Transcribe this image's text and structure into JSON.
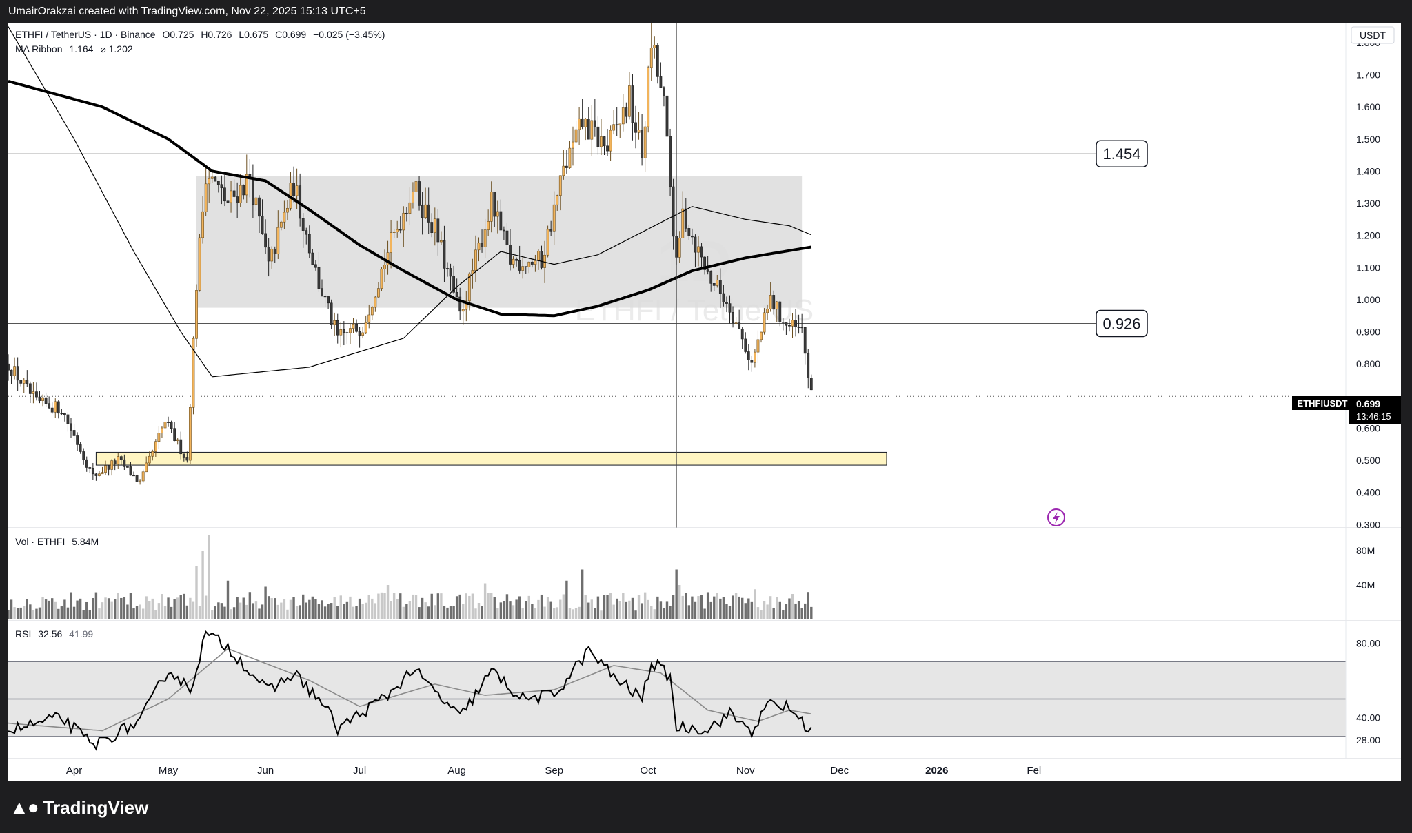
{
  "header": {
    "attribution": "UmairOrakzai created with TradingView.com, Nov 22, 2025 15:13 UTC+5"
  },
  "footer": {
    "brand": "TradingView"
  },
  "legend": {
    "symbol": "ETHFI / TetherUS · 1D · Binance",
    "open": "O0.725",
    "high": "H0.726",
    "low": "L0.675",
    "close": "C0.699",
    "change": "−0.025 (−3.45%)",
    "ribbon_label": "MA Ribbon",
    "ribbon_value1": "1.164",
    "ribbon_value2": "⌀ 1.202",
    "vol_label": "Vol · ETHFI",
    "vol_value": "5.84M",
    "rsi_label": "RSI",
    "rsi_value": "32.56",
    "rsi_ma": "41.99"
  },
  "watermark": {
    "ticker": "ETHFI / TetherUS",
    "interval": "1D"
  },
  "price_axis": {
    "currency": "USDT",
    "ticks": [
      "1.800",
      "1.700",
      "1.600",
      "1.500",
      "1.400",
      "1.300",
      "1.200",
      "1.100",
      "1.000",
      "0.900",
      "0.800",
      "0.600",
      "0.500",
      "0.400",
      "0.300"
    ],
    "current_symbol": "ETHFIUSDT",
    "current_price": "0.699",
    "countdown": "13:46:15"
  },
  "vol_axis": {
    "ticks": [
      "80M",
      "40M"
    ]
  },
  "rsi_axis": {
    "ticks": [
      "80.00",
      "40.00",
      "28.00"
    ]
  },
  "time_axis": {
    "ticks": [
      "Apr",
      "May",
      "Jun",
      "Jul",
      "Aug",
      "Sep",
      "Oct",
      "Nov",
      "Dec",
      "2026",
      "Fel"
    ]
  },
  "annotations": {
    "level_high": "1.454",
    "level_low": "0.926"
  },
  "colors": {
    "bull": "#f2b45c",
    "bear": "#3a3a3a",
    "zone_grey": "#dcdcdc",
    "zone_yellow": "#fff5c2",
    "ma_line": "#000000",
    "rsi_line": "#000000",
    "rsi_ma_line": "#8a8a8a"
  },
  "chart_data": {
    "type": "candlestick",
    "symbol": "ETHFI / TetherUS",
    "interval": "1D",
    "exchange": "Binance",
    "time_range": [
      "2025-03-11",
      "2025-11-22"
    ],
    "price_range": [
      0.3,
      1.85
    ],
    "anchors": [
      {
        "date": "2025-03-11",
        "close": 0.8
      },
      {
        "date": "2025-03-20",
        "close": 0.68
      },
      {
        "date": "2025-03-28",
        "close": 0.66
      },
      {
        "date": "2025-04-07",
        "close": 0.45
      },
      {
        "date": "2025-04-15",
        "close": 0.5
      },
      {
        "date": "2025-04-22",
        "close": 0.43
      },
      {
        "date": "2025-04-30",
        "close": 0.62
      },
      {
        "date": "2025-05-07",
        "close": 0.5
      },
      {
        "date": "2025-05-10",
        "close": 1.05
      },
      {
        "date": "2025-05-13",
        "close": 1.4
      },
      {
        "date": "2025-05-20",
        "close": 1.3
      },
      {
        "date": "2025-05-27",
        "close": 1.38
      },
      {
        "date": "2025-06-02",
        "close": 1.1
      },
      {
        "date": "2025-06-10",
        "close": 1.36
      },
      {
        "date": "2025-06-18",
        "close": 1.05
      },
      {
        "date": "2025-06-24",
        "close": 0.88
      },
      {
        "date": "2025-07-02",
        "close": 0.92
      },
      {
        "date": "2025-07-10",
        "close": 1.15
      },
      {
        "date": "2025-07-18",
        "close": 1.35
      },
      {
        "date": "2025-07-25",
        "close": 1.22
      },
      {
        "date": "2025-08-02",
        "close": 0.95
      },
      {
        "date": "2025-08-12",
        "close": 1.3
      },
      {
        "date": "2025-08-18",
        "close": 1.12
      },
      {
        "date": "2025-08-28",
        "close": 1.12
      },
      {
        "date": "2025-09-04",
        "close": 1.4
      },
      {
        "date": "2025-09-10",
        "close": 1.55
      },
      {
        "date": "2025-09-18",
        "close": 1.47
      },
      {
        "date": "2025-09-25",
        "close": 1.62
      },
      {
        "date": "2025-09-29",
        "close": 1.45
      },
      {
        "date": "2025-10-02",
        "close": 1.8
      },
      {
        "date": "2025-10-06",
        "close": 1.6
      },
      {
        "date": "2025-10-10",
        "close": 1.1
      },
      {
        "date": "2025-10-12",
        "close": 1.27
      },
      {
        "date": "2025-10-20",
        "close": 1.08
      },
      {
        "date": "2025-10-27",
        "close": 0.98
      },
      {
        "date": "2025-11-03",
        "close": 0.8
      },
      {
        "date": "2025-11-09",
        "close": 1.0
      },
      {
        "date": "2025-11-14",
        "close": 0.92
      },
      {
        "date": "2025-11-19",
        "close": 0.9
      },
      {
        "date": "2025-11-22",
        "close": 0.699
      }
    ],
    "ma_ribbon": {
      "slow": [
        {
          "date": "2025-03-11",
          "value": 1.68
        },
        {
          "date": "2025-04-10",
          "value": 1.6
        },
        {
          "date": "2025-05-01",
          "value": 1.5
        },
        {
          "date": "2025-05-15",
          "value": 1.4
        },
        {
          "date": "2025-06-01",
          "value": 1.37
        },
        {
          "date": "2025-06-15",
          "value": 1.28
        },
        {
          "date": "2025-07-01",
          "value": 1.17
        },
        {
          "date": "2025-07-15",
          "value": 1.09
        },
        {
          "date": "2025-08-01",
          "value": 1.0
        },
        {
          "date": "2025-08-15",
          "value": 0.955
        },
        {
          "date": "2025-09-01",
          "value": 0.95
        },
        {
          "date": "2025-09-15",
          "value": 0.98
        },
        {
          "date": "2025-10-01",
          "value": 1.03
        },
        {
          "date": "2025-10-15",
          "value": 1.09
        },
        {
          "date": "2025-11-01",
          "value": 1.13
        },
        {
          "date": "2025-11-22",
          "value": 1.164
        }
      ],
      "fast": [
        {
          "date": "2025-03-11",
          "value": 1.85
        },
        {
          "date": "2025-04-01",
          "value": 1.5
        },
        {
          "date": "2025-04-20",
          "value": 1.15
        },
        {
          "date": "2025-05-05",
          "value": 0.9
        },
        {
          "date": "2025-05-15",
          "value": 0.76
        },
        {
          "date": "2025-06-15",
          "value": 0.79
        },
        {
          "date": "2025-07-15",
          "value": 0.88
        },
        {
          "date": "2025-08-01",
          "value": 1.04
        },
        {
          "date": "2025-08-15",
          "value": 1.15
        },
        {
          "date": "2025-09-01",
          "value": 1.11
        },
        {
          "date": "2025-09-15",
          "value": 1.14
        },
        {
          "date": "2025-10-01",
          "value": 1.22
        },
        {
          "date": "2025-10-15",
          "value": 1.29
        },
        {
          "date": "2025-11-01",
          "value": 1.25
        },
        {
          "date": "2025-11-15",
          "value": 1.23
        },
        {
          "date": "2025-11-22",
          "value": 1.202
        }
      ]
    },
    "horizontal_levels": [
      1.454,
      0.926
    ],
    "zones": [
      {
        "name": "range",
        "from_date": "2025-05-10",
        "to_date": "2025-11-19",
        "low": 0.975,
        "high": 1.385
      },
      {
        "name": "support",
        "from_date": "2025-04-08",
        "to_date": "2025-12-16",
        "low": 0.485,
        "high": 0.525
      }
    ],
    "vertical_marker_date": "2025-10-10",
    "volume": {
      "label": "Vol · ETHFI",
      "last": "5.84M",
      "range": [
        0,
        100
      ],
      "unit": "M",
      "spikes": [
        {
          "date": "2025-05-10",
          "value": 62
        },
        {
          "date": "2025-05-12",
          "value": 80
        },
        {
          "date": "2025-05-14",
          "value": 98
        },
        {
          "date": "2025-05-20",
          "value": 45
        },
        {
          "date": "2025-06-01",
          "value": 38
        },
        {
          "date": "2025-07-10",
          "value": 40
        },
        {
          "date": "2025-08-10",
          "value": 42
        },
        {
          "date": "2025-09-05",
          "value": 45
        },
        {
          "date": "2025-09-10",
          "value": 58
        },
        {
          "date": "2025-10-10",
          "value": 58
        },
        {
          "date": "2025-10-11",
          "value": 40
        },
        {
          "date": "2025-11-04",
          "value": 35
        }
      ]
    },
    "rsi": {
      "label": "RSI",
      "value": 32.56,
      "ma": 41.99,
      "range": [
        20,
        92
      ],
      "band_upper": 70,
      "band_mid": 50,
      "band_lower": 30,
      "anchors": [
        {
          "date": "2025-03-11",
          "value": 33
        },
        {
          "date": "2025-03-28",
          "value": 40
        },
        {
          "date": "2025-04-07",
          "value": 25
        },
        {
          "date": "2025-04-22",
          "value": 38
        },
        {
          "date": "2025-05-01",
          "value": 66
        },
        {
          "date": "2025-05-08",
          "value": 55
        },
        {
          "date": "2025-05-13",
          "value": 85
        },
        {
          "date": "2025-05-20",
          "value": 78
        },
        {
          "date": "2025-06-02",
          "value": 54
        },
        {
          "date": "2025-06-10",
          "value": 64
        },
        {
          "date": "2025-06-20",
          "value": 46
        },
        {
          "date": "2025-06-24",
          "value": 34
        },
        {
          "date": "2025-07-10",
          "value": 52
        },
        {
          "date": "2025-07-18",
          "value": 66
        },
        {
          "date": "2025-08-02",
          "value": 40
        },
        {
          "date": "2025-08-12",
          "value": 65
        },
        {
          "date": "2025-08-22",
          "value": 50
        },
        {
          "date": "2025-09-01",
          "value": 52
        },
        {
          "date": "2025-09-12",
          "value": 76
        },
        {
          "date": "2025-09-20",
          "value": 62
        },
        {
          "date": "2025-09-29",
          "value": 50
        },
        {
          "date": "2025-10-02",
          "value": 70
        },
        {
          "date": "2025-10-08",
          "value": 62
        },
        {
          "date": "2025-10-10",
          "value": 35
        },
        {
          "date": "2025-10-20",
          "value": 34
        },
        {
          "date": "2025-10-27",
          "value": 42
        },
        {
          "date": "2025-11-03",
          "value": 33
        },
        {
          "date": "2025-11-09",
          "value": 48
        },
        {
          "date": "2025-11-15",
          "value": 45
        },
        {
          "date": "2025-11-22",
          "value": 32.56
        }
      ],
      "ma_anchors": [
        {
          "date": "2025-03-11",
          "value": 37
        },
        {
          "date": "2025-04-10",
          "value": 33
        },
        {
          "date": "2025-05-01",
          "value": 50
        },
        {
          "date": "2025-05-20",
          "value": 77
        },
        {
          "date": "2025-06-15",
          "value": 60
        },
        {
          "date": "2025-07-01",
          "value": 46
        },
        {
          "date": "2025-07-25",
          "value": 58
        },
        {
          "date": "2025-08-10",
          "value": 52
        },
        {
          "date": "2025-09-01",
          "value": 55
        },
        {
          "date": "2025-09-20",
          "value": 68
        },
        {
          "date": "2025-10-05",
          "value": 64
        },
        {
          "date": "2025-10-20",
          "value": 44
        },
        {
          "date": "2025-11-05",
          "value": 38
        },
        {
          "date": "2025-11-15",
          "value": 44
        },
        {
          "date": "2025-11-22",
          "value": 41.99
        }
      ]
    }
  }
}
